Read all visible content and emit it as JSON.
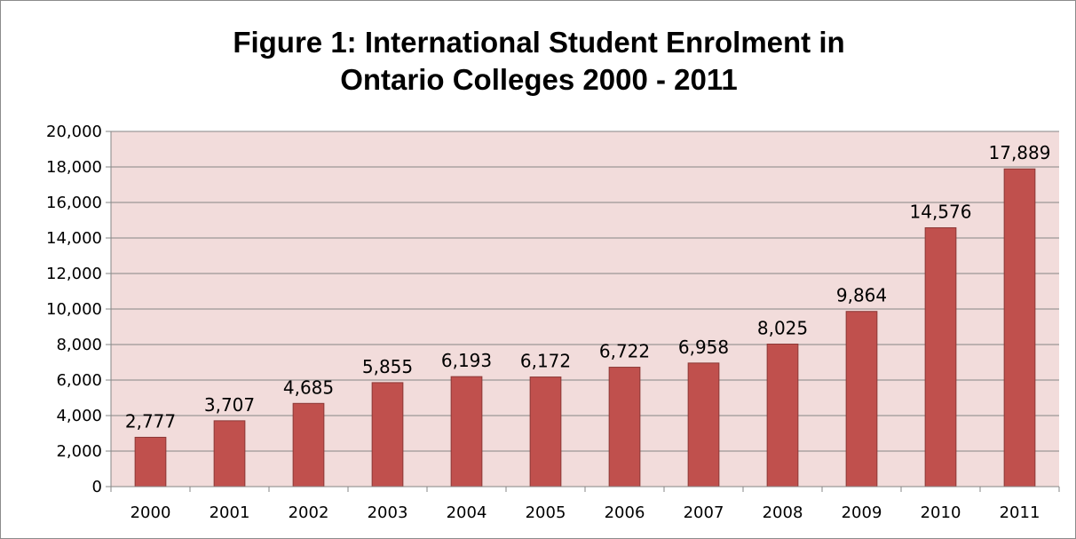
{
  "chart_data": {
    "type": "bar",
    "title": "Figure 1: International Student Enrolment in Ontario Colleges 2000 - 2011",
    "title_lines": [
      "Figure 1: International Student Enrolment in",
      "Ontario Colleges 2000 - 2011"
    ],
    "xlabel": "",
    "ylabel": "",
    "categories": [
      "2000",
      "2001",
      "2002",
      "2003",
      "2004",
      "2005",
      "2006",
      "2007",
      "2008",
      "2009",
      "2010",
      "2011"
    ],
    "values": [
      2777,
      3707,
      4685,
      5855,
      6193,
      6172,
      6722,
      6958,
      8025,
      9864,
      14576,
      17889
    ],
    "data_labels": [
      "2,777",
      "3,707",
      "4,685",
      "5,855",
      "6,193",
      "6,172",
      "6,722",
      "6,958",
      "8,025",
      "9,864",
      "14,576",
      "17,889"
    ],
    "ylim": [
      0,
      20000
    ],
    "yticks": [
      0,
      2000,
      4000,
      6000,
      8000,
      10000,
      12000,
      14000,
      16000,
      18000,
      20000
    ],
    "ytick_labels": [
      "0",
      "2,000",
      "4,000",
      "6,000",
      "8,000",
      "10,000",
      "12,000",
      "14,000",
      "16,000",
      "18,000",
      "20,000"
    ],
    "grid": true,
    "legend": "none",
    "colors": {
      "bar_fill": "#c0504d",
      "bar_stroke": "#8c3836",
      "plot_background": "#f2dcdb",
      "gridline": "#868686",
      "axis": "#868686"
    }
  }
}
